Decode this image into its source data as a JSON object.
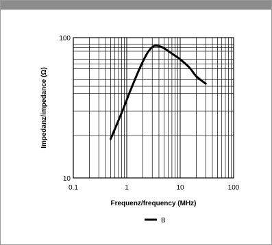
{
  "chart_data": {
    "type": "line",
    "title": "",
    "xlabel": "Frequenz/frequency (MHz)",
    "ylabel": "Impedanz/impedance (Ω)",
    "xscale": "log",
    "yscale": "log",
    "xlim": [
      0.1,
      100
    ],
    "ylim": [
      10,
      100
    ],
    "grid": true,
    "x_ticks": [
      "0.1",
      "1",
      "10",
      "100"
    ],
    "y_ticks": [
      "100",
      "10"
    ],
    "legend_placement": "bottom-center",
    "series": [
      {
        "name": "B",
        "color": "#000000",
        "x": [
          0.5,
          0.8,
          1.2,
          1.8,
          2.5,
          3.2,
          4.0,
          5.0,
          7.0,
          10.0,
          15.0,
          20.0,
          30.0
        ],
        "y": [
          19,
          29,
          43,
          62,
          79,
          87,
          87,
          84,
          77,
          70,
          61,
          53,
          47
        ]
      }
    ]
  }
}
